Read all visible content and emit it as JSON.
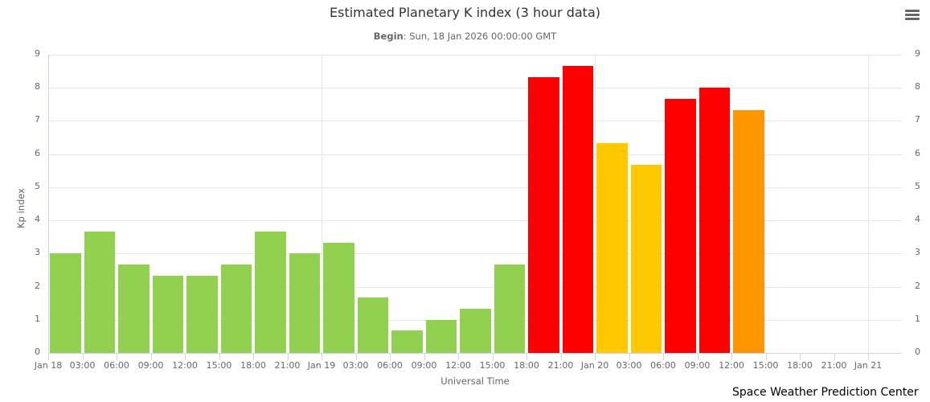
{
  "header": {
    "title": "Estimated Planetary K index (3 hour data)",
    "subtitle_bold": "Begin",
    "subtitle_rest": ": Sun, 18 Jan 2026 00:00:00 GMT",
    "menu_icon": "hamburger-menu-icon"
  },
  "axes": {
    "ylabel": "Kp index",
    "xlabel": "Universal Time",
    "yticks": [
      "0",
      "1",
      "2",
      "3",
      "4",
      "5",
      "6",
      "7",
      "8",
      "9"
    ],
    "xticks": [
      "Jan 18",
      "03:00",
      "06:00",
      "09:00",
      "12:00",
      "15:00",
      "18:00",
      "21:00",
      "Jan 19",
      "03:00",
      "06:00",
      "09:00",
      "12:00",
      "15:00",
      "18:00",
      "21:00",
      "Jan 20",
      "03:00",
      "06:00",
      "09:00",
      "12:00",
      "15:00",
      "18:00",
      "21:00",
      "Jan 21"
    ]
  },
  "credit": "Space Weather Prediction Center",
  "colors": {
    "green": "#92d050",
    "yellow": "#ffc800",
    "orange": "#ff9600",
    "red": "#ff0000"
  },
  "chart_data": {
    "type": "bar",
    "title": "Estimated Planetary K index (3 hour data)",
    "subtitle": "Begin: Sun, 18 Jan 2026 00:00:00 GMT",
    "xlabel": "Universal Time",
    "ylabel": "Kp index",
    "ylim": [
      0,
      9
    ],
    "grid": true,
    "legend": "none",
    "categories": [
      "Jan 18 00:00",
      "Jan 18 03:00",
      "Jan 18 06:00",
      "Jan 18 09:00",
      "Jan 18 12:00",
      "Jan 18 15:00",
      "Jan 18 18:00",
      "Jan 18 21:00",
      "Jan 19 00:00",
      "Jan 19 03:00",
      "Jan 19 06:00",
      "Jan 19 09:00",
      "Jan 19 12:00",
      "Jan 19 15:00",
      "Jan 19 18:00",
      "Jan 19 21:00",
      "Jan 20 00:00",
      "Jan 20 03:00",
      "Jan 20 06:00",
      "Jan 20 09:00",
      "Jan 20 12:00"
    ],
    "values": [
      3.0,
      3.67,
      2.67,
      2.33,
      2.33,
      2.67,
      3.67,
      3.0,
      3.33,
      1.67,
      0.67,
      1.0,
      1.33,
      2.67,
      8.33,
      8.67,
      6.33,
      5.67,
      7.67,
      8.0,
      7.33
    ],
    "bar_colors": [
      "green",
      "green",
      "green",
      "green",
      "green",
      "green",
      "green",
      "green",
      "green",
      "green",
      "green",
      "green",
      "green",
      "green",
      "red",
      "red",
      "yellow",
      "yellow",
      "red",
      "red",
      "orange"
    ]
  }
}
